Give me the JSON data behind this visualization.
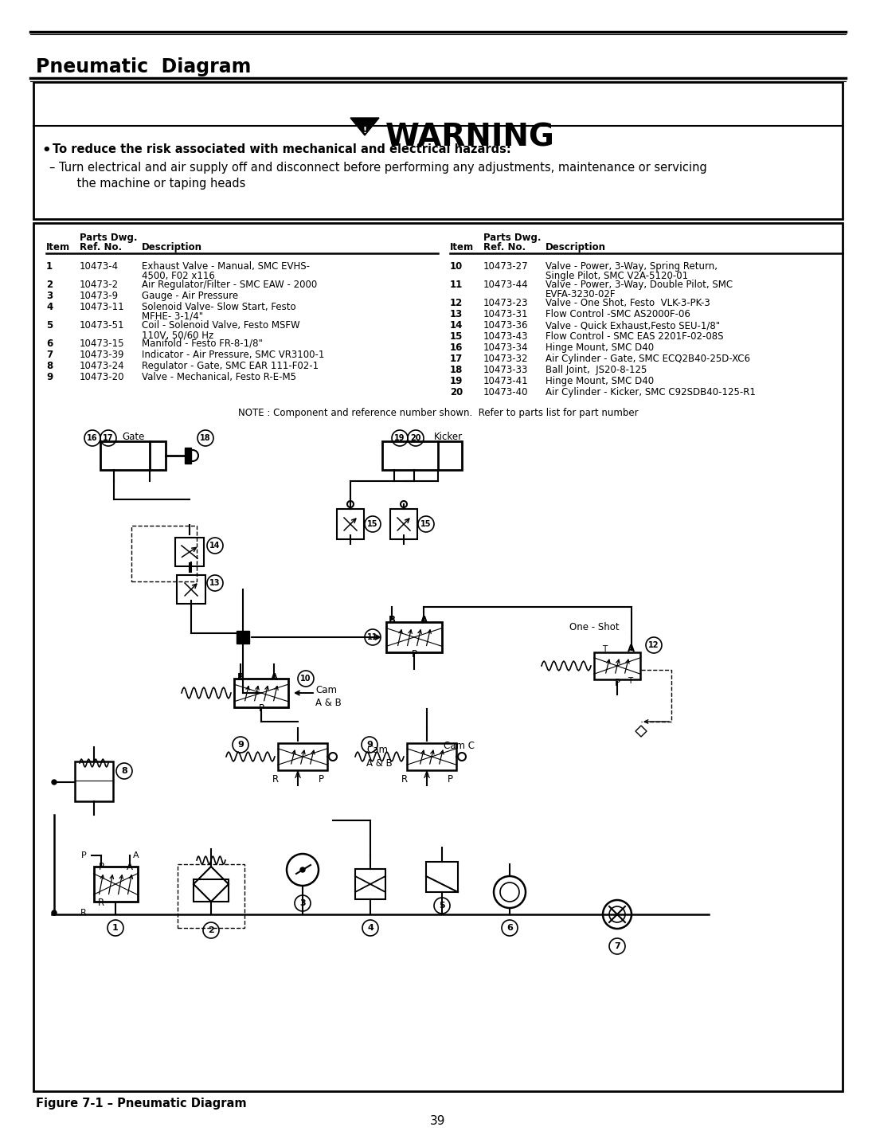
{
  "title": "Pneumatic  Diagram",
  "page_number": "39",
  "figure_caption": "Figure 7-1 – Pneumatic Diagram",
  "warning_text": "WARNING",
  "bullet_text": "To reduce the risk associated with mechanical and electrical hazards:",
  "dash_line1": "– Turn electrical and air supply off and disconnect before performing any adjustments, maintenance or servicing",
  "dash_line2": "    the machine or taping heads",
  "note_text": "NOTE : Component and reference number shown.  Refer to parts list for part number",
  "left_rows": [
    [
      "1",
      "10473-4",
      "Exhaust Valve - Manual, SMC EVHS-",
      "4500, F02 x116"
    ],
    [
      "2",
      "10473-2",
      "Air Regulator/Filter - SMC EAW - 2000",
      ""
    ],
    [
      "3",
      "10473-9",
      "Gauge - Air Pressure",
      ""
    ],
    [
      "4",
      "10473-11",
      "Solenoid Valve- Slow Start, Festo",
      "MFHE- 3-1/4\""
    ],
    [
      "5",
      "10473-51",
      "Coil - Solenoid Valve, Festo MSFW",
      "110V, 50/60 Hz"
    ],
    [
      "6",
      "10473-15",
      "Manifold - Festo FR-8-1/8\"",
      ""
    ],
    [
      "7",
      "10473-39",
      "Indicator - Air Pressure, SMC VR3100-1",
      ""
    ],
    [
      "8",
      "10473-24",
      "Regulator - Gate, SMC EAR 111-F02-1",
      ""
    ],
    [
      "9",
      "10473-20",
      "Valve - Mechanical, Festo R-E-M5",
      ""
    ]
  ],
  "right_rows": [
    [
      "10",
      "10473-27",
      "Valve - Power, 3-Way, Spring Return,",
      "Single Pilot, SMC V2A-5120-01"
    ],
    [
      "11",
      "10473-44",
      "Valve - Power, 3-Way, Double Pilot, SMC",
      "EVFA-3230-02F"
    ],
    [
      "12",
      "10473-23",
      "Valve - One Shot, Festo  VLK-3-PK-3",
      ""
    ],
    [
      "13",
      "10473-31",
      "Flow Control -SMC AS2000F-06",
      ""
    ],
    [
      "14",
      "10473-36",
      "Valve - Quick Exhaust,Festo SEU-1/8\"",
      ""
    ],
    [
      "15",
      "10473-43",
      "Flow Control - SMC EAS 2201F-02-08S",
      ""
    ],
    [
      "16",
      "10473-34",
      "Hinge Mount, SMC D40",
      ""
    ],
    [
      "17",
      "10473-32",
      "Air Cylinder - Gate, SMC ECQ2B40-25D-XC6",
      ""
    ],
    [
      "18",
      "10473-33",
      "Ball Joint,  JS20-8-125",
      ""
    ],
    [
      "19",
      "10473-41",
      "Hinge Mount, SMC D40",
      ""
    ],
    [
      "20",
      "10473-40",
      "Air Cylinder - Kicker, SMC C92SDB40-125-R1",
      ""
    ]
  ]
}
